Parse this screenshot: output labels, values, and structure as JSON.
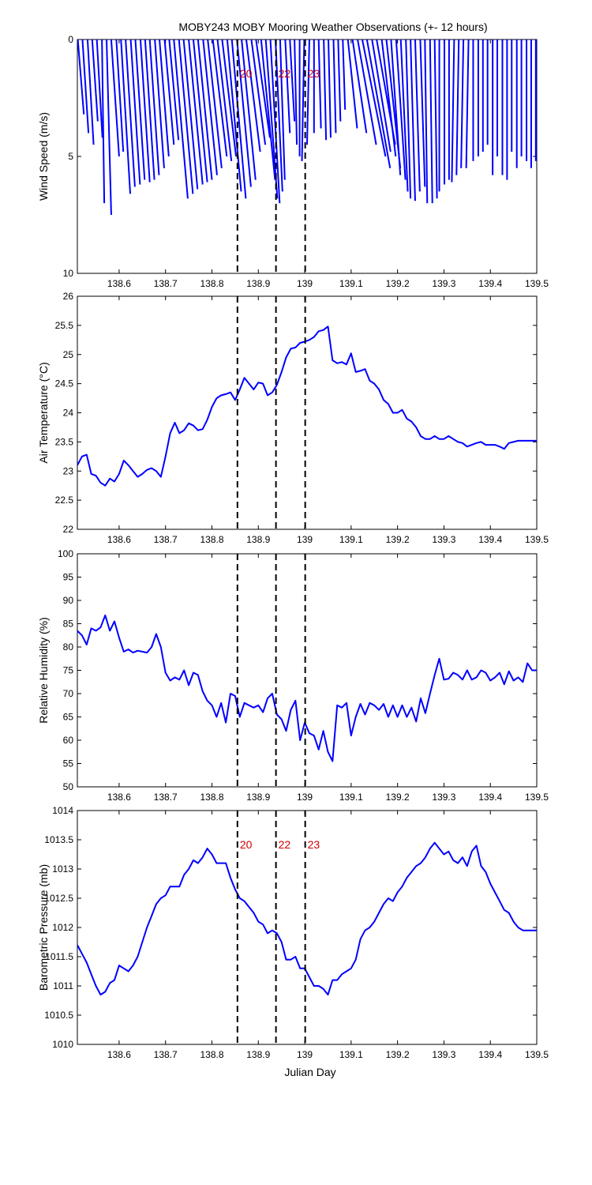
{
  "figure": {
    "title": "MOBY243 MOBY Mooring Weather Observations (+- 12 hours)",
    "xlabel": "Julian Day",
    "colors": {
      "data": "#0000ff",
      "marker_line": "#000000",
      "marker_label": "#cc0000",
      "axes": "#000000"
    },
    "markers": [
      {
        "x": 138.855,
        "label": "20"
      },
      {
        "x": 138.938,
        "label": "22"
      },
      {
        "x": 139.001,
        "label": "23"
      }
    ]
  },
  "chart_data": [
    {
      "id": "wind",
      "type": "line",
      "subtype": "wind-stick",
      "ylabel": "Wind Speed (m/s)",
      "xlim": [
        138.51,
        139.5
      ],
      "ylim": [
        0,
        10
      ],
      "y_reversed": true,
      "yticks": [
        0,
        5,
        10
      ],
      "xticks": [
        138.6,
        138.7,
        138.8,
        138.9,
        139,
        139.1,
        139.2,
        139.3,
        139.4,
        139.5
      ],
      "show_marker_labels": true,
      "x": [
        138.511,
        138.521,
        138.532,
        138.542,
        138.552,
        138.563,
        138.573,
        138.583,
        138.594,
        138.604,
        138.614,
        138.625,
        138.635,
        138.646,
        138.656,
        138.666,
        138.677,
        138.687,
        138.698,
        138.708,
        138.718,
        138.729,
        138.739,
        138.75,
        138.76,
        138.77,
        138.781,
        138.791,
        138.802,
        138.812,
        138.822,
        138.833,
        138.843,
        138.854,
        138.864,
        138.874,
        138.885,
        138.895,
        138.906,
        138.916,
        138.926,
        138.937,
        138.947,
        138.958,
        138.968,
        138.978,
        138.989,
        138.999,
        139.01,
        139.02,
        139.03,
        139.041,
        139.051,
        139.062,
        139.072,
        139.082,
        139.093,
        139.103,
        139.114,
        139.124,
        139.134,
        139.145,
        139.155,
        139.166,
        139.176,
        139.186,
        139.197,
        139.207,
        139.218,
        139.228,
        139.238,
        139.249,
        139.259,
        139.27,
        139.28,
        139.29,
        139.301,
        139.311,
        139.322,
        139.332,
        139.342,
        139.353,
        139.363,
        139.374,
        139.384,
        139.394,
        139.405,
        139.415,
        139.426,
        139.436,
        139.446,
        139.457,
        139.467,
        139.478,
        139.488,
        139.498
      ],
      "speed": [
        3.2,
        4.0,
        4.5,
        3.5,
        4.2,
        7.0,
        7.5,
        5.0,
        4.8,
        6.6,
        6.3,
        6.2,
        6.0,
        6.1,
        6.0,
        5.8,
        5.5,
        5.0,
        4.5,
        4.3,
        6.8,
        6.6,
        6.4,
        6.2,
        6.1,
        6.0,
        5.8,
        5.5,
        5.0,
        5.2,
        5.0,
        6.5,
        6.8,
        6.3,
        6.0,
        4.8,
        4.5,
        4.2,
        6.0,
        6.8,
        7.0,
        6.5,
        6.0,
        4.0,
        3.5,
        4.5,
        5.0,
        5.2,
        4.5,
        4.0,
        3.8,
        4.3,
        4.2,
        4.0,
        3.5,
        3.0,
        3.8,
        4.0,
        4.5,
        5.0,
        5.5,
        4.8,
        4.5,
        5.0,
        5.5,
        5.8,
        6.0,
        6.5,
        6.8,
        6.9,
        6.5,
        6.3,
        7.0,
        7.0,
        6.8,
        6.5,
        6.2,
        6.0,
        6.1,
        5.8,
        5.5,
        5.5,
        5.2,
        5.0,
        4.8,
        4.5,
        5.8,
        5.0,
        5.8,
        6.0,
        4.8,
        5.5,
        5.0,
        5.2,
        5.5,
        5.2
      ],
      "direction_dx": [
        0.013,
        0.013,
        0.013,
        0.012,
        0.012,
        0.005,
        0.01,
        0.017,
        0.015,
        0.02,
        0.02,
        0.02,
        0.02,
        0.02,
        0.02,
        0.02,
        0.02,
        0.02,
        0.02,
        0.02,
        0.03,
        0.03,
        0.03,
        0.03,
        0.03,
        0.03,
        0.03,
        0.03,
        0.03,
        0.03,
        0.03,
        0.03,
        0.03,
        0.03,
        0.03,
        0.03,
        0.03,
        0.03,
        0.03,
        0.025,
        0.02,
        0.015,
        0.01,
        0.01,
        0.01,
        0.005,
        0.0,
        -0.005,
        -0.005,
        0.0,
        0.005,
        0.005,
        0.005,
        0.005,
        0.005,
        0.005,
        0.02,
        0.03,
        0.04,
        0.05,
        0.05,
        0.04,
        0.04,
        0.03,
        0.03,
        0.02,
        0.02,
        0.015,
        0.01,
        0.01,
        0.01,
        0.01,
        0.005,
        0.005,
        0.005,
        0.0,
        0.0,
        0.0,
        -0.005,
        -0.005,
        -0.005,
        -0.005,
        0.0,
        0.0,
        0.0,
        0.0,
        0.0,
        0.0,
        0.0,
        0.0,
        0.0,
        0.0,
        0.0,
        0.0,
        0.0,
        0.0
      ]
    },
    {
      "id": "air-temp",
      "type": "line",
      "ylabel": "Air Temperature (°C)",
      "xlim": [
        138.51,
        139.5
      ],
      "ylim": [
        22,
        26
      ],
      "yticks": [
        22,
        22.5,
        23,
        23.5,
        24,
        24.5,
        25,
        25.5,
        26
      ],
      "xticks": [
        138.6,
        138.7,
        138.8,
        138.9,
        139,
        139.1,
        139.2,
        139.3,
        139.4,
        139.5
      ],
      "show_marker_labels": false,
      "x": [
        138.51,
        138.52,
        138.53,
        138.54,
        138.55,
        138.56,
        138.57,
        138.58,
        138.59,
        138.6,
        138.61,
        138.62,
        138.63,
        138.64,
        138.65,
        138.66,
        138.67,
        138.68,
        138.69,
        138.7,
        138.71,
        138.72,
        138.73,
        138.74,
        138.75,
        138.76,
        138.77,
        138.78,
        138.79,
        138.8,
        138.81,
        138.82,
        138.83,
        138.84,
        138.85,
        138.86,
        138.87,
        138.88,
        138.89,
        138.9,
        138.91,
        138.92,
        138.93,
        138.94,
        138.95,
        138.96,
        138.97,
        138.98,
        138.99,
        139.0,
        139.01,
        139.02,
        139.03,
        139.04,
        139.05,
        139.06,
        139.07,
        139.08,
        139.09,
        139.1,
        139.11,
        139.12,
        139.13,
        139.14,
        139.15,
        139.16,
        139.17,
        139.18,
        139.19,
        139.2,
        139.21,
        139.22,
        139.23,
        139.24,
        139.25,
        139.26,
        139.27,
        139.28,
        139.29,
        139.3,
        139.31,
        139.32,
        139.33,
        139.34,
        139.35,
        139.36,
        139.37,
        139.38,
        139.39,
        139.4,
        139.41,
        139.42,
        139.43,
        139.44,
        139.45,
        139.46,
        139.47,
        139.48,
        139.49,
        139.5
      ],
      "y": [
        23.1,
        23.25,
        23.28,
        22.95,
        22.92,
        22.8,
        22.75,
        22.87,
        22.82,
        22.95,
        23.18,
        23.1,
        23.0,
        22.9,
        22.95,
        23.02,
        23.05,
        23.0,
        22.9,
        23.25,
        23.65,
        23.83,
        23.65,
        23.7,
        23.82,
        23.78,
        23.7,
        23.72,
        23.88,
        24.1,
        24.25,
        24.3,
        24.32,
        24.35,
        24.22,
        24.4,
        24.6,
        24.5,
        24.4,
        24.52,
        24.5,
        24.3,
        24.35,
        24.48,
        24.7,
        24.95,
        25.1,
        25.12,
        25.2,
        25.22,
        25.25,
        25.3,
        25.4,
        25.42,
        25.48,
        24.9,
        24.85,
        24.87,
        24.83,
        25.02,
        24.7,
        24.72,
        24.75,
        24.55,
        24.5,
        24.4,
        24.22,
        24.15,
        24.0,
        24.0,
        24.05,
        23.9,
        23.85,
        23.75,
        23.6,
        23.55,
        23.55,
        23.6,
        23.55,
        23.55,
        23.6,
        23.55,
        23.5,
        23.48,
        23.42,
        23.45,
        23.48,
        23.5,
        23.45,
        23.45,
        23.45,
        23.42,
        23.38,
        23.48,
        23.5,
        23.52,
        23.52,
        23.52,
        23.52,
        23.52
      ]
    },
    {
      "id": "humidity",
      "type": "line",
      "ylabel": "Relative Humidity (%)",
      "xlim": [
        138.51,
        139.5
      ],
      "ylim": [
        50,
        100
      ],
      "yticks": [
        50,
        55,
        60,
        65,
        70,
        75,
        80,
        85,
        90,
        95,
        100
      ],
      "xticks": [
        138.6,
        138.7,
        138.8,
        138.9,
        139,
        139.1,
        139.2,
        139.3,
        139.4,
        139.5
      ],
      "show_marker_labels": false,
      "x": [
        138.51,
        138.52,
        138.53,
        138.54,
        138.55,
        138.56,
        138.57,
        138.58,
        138.59,
        138.6,
        138.61,
        138.62,
        138.63,
        138.64,
        138.65,
        138.66,
        138.67,
        138.68,
        138.69,
        138.7,
        138.71,
        138.72,
        138.73,
        138.74,
        138.75,
        138.76,
        138.77,
        138.78,
        138.79,
        138.8,
        138.81,
        138.82,
        138.83,
        138.84,
        138.85,
        138.86,
        138.87,
        138.88,
        138.89,
        138.9,
        138.91,
        138.92,
        138.93,
        138.94,
        138.95,
        138.96,
        138.97,
        138.98,
        138.99,
        139.0,
        139.01,
        139.02,
        139.03,
        139.04,
        139.05,
        139.06,
        139.07,
        139.08,
        139.09,
        139.1,
        139.11,
        139.12,
        139.13,
        139.14,
        139.15,
        139.16,
        139.17,
        139.18,
        139.19,
        139.2,
        139.21,
        139.22,
        139.23,
        139.24,
        139.25,
        139.26,
        139.27,
        139.28,
        139.29,
        139.3,
        139.31,
        139.32,
        139.33,
        139.34,
        139.35,
        139.36,
        139.37,
        139.38,
        139.39,
        139.4,
        139.41,
        139.42,
        139.43,
        139.44,
        139.45,
        139.46,
        139.47,
        139.48,
        139.49,
        139.5
      ],
      "y": [
        83.5,
        82.5,
        80.5,
        84.0,
        83.5,
        84.2,
        86.8,
        83.5,
        85.5,
        82.0,
        79.0,
        79.5,
        78.8,
        79.2,
        79.0,
        78.8,
        80.0,
        82.8,
        80.0,
        74.5,
        72.8,
        73.5,
        73.0,
        75.0,
        71.8,
        74.5,
        74.0,
        70.5,
        68.5,
        67.5,
        65.0,
        68.0,
        63.8,
        70.0,
        69.5,
        65.0,
        68.0,
        67.5,
        67.0,
        67.5,
        66.0,
        69.0,
        70.0,
        65.5,
        64.5,
        62.0,
        66.5,
        68.5,
        60.0,
        63.8,
        61.5,
        61.0,
        58.0,
        62.0,
        57.5,
        55.5,
        67.5,
        67.0,
        68.0,
        61.0,
        65.0,
        67.8,
        65.5,
        68.0,
        67.5,
        66.5,
        67.8,
        65.0,
        67.5,
        65.0,
        67.5,
        65.0,
        67.0,
        64.0,
        69.0,
        65.8,
        70.0,
        74.0,
        77.5,
        73.0,
        73.2,
        74.5,
        74.0,
        73.0,
        75.0,
        73.0,
        73.5,
        75.0,
        74.5,
        72.8,
        73.5,
        74.5,
        72.0,
        74.8,
        72.8,
        73.5,
        72.5,
        76.5,
        75.0,
        75.0
      ]
    },
    {
      "id": "pressure",
      "type": "line",
      "ylabel": "Barometric Pressure (mb)",
      "xlim": [
        138.51,
        139.5
      ],
      "ylim": [
        1010,
        1014
      ],
      "yticks": [
        1010,
        1010.5,
        1011,
        1011.5,
        1012,
        1012.5,
        1013,
        1013.5,
        1014
      ],
      "xticks": [
        138.6,
        138.7,
        138.8,
        138.9,
        139,
        139.1,
        139.2,
        139.3,
        139.4,
        139.5
      ],
      "show_marker_labels": true,
      "x": [
        138.51,
        138.52,
        138.53,
        138.54,
        138.55,
        138.56,
        138.57,
        138.58,
        138.59,
        138.6,
        138.61,
        138.62,
        138.63,
        138.64,
        138.65,
        138.66,
        138.67,
        138.68,
        138.69,
        138.7,
        138.71,
        138.72,
        138.73,
        138.74,
        138.75,
        138.76,
        138.77,
        138.78,
        138.79,
        138.8,
        138.81,
        138.82,
        138.83,
        138.84,
        138.85,
        138.86,
        138.87,
        138.88,
        138.89,
        138.9,
        138.91,
        138.92,
        138.93,
        138.94,
        138.95,
        138.96,
        138.97,
        138.98,
        138.99,
        139.0,
        139.01,
        139.02,
        139.03,
        139.04,
        139.05,
        139.06,
        139.07,
        139.08,
        139.09,
        139.1,
        139.11,
        139.12,
        139.13,
        139.14,
        139.15,
        139.16,
        139.17,
        139.18,
        139.19,
        139.2,
        139.21,
        139.22,
        139.23,
        139.24,
        139.25,
        139.26,
        139.27,
        139.28,
        139.29,
        139.3,
        139.31,
        139.32,
        139.33,
        139.34,
        139.35,
        139.36,
        139.37,
        139.38,
        139.39,
        139.4,
        139.41,
        139.42,
        139.43,
        139.44,
        139.45,
        139.46,
        139.47,
        139.48,
        139.49,
        139.5
      ],
      "y": [
        1011.7,
        1011.55,
        1011.4,
        1011.2,
        1011.0,
        1010.85,
        1010.9,
        1011.05,
        1011.1,
        1011.35,
        1011.3,
        1011.25,
        1011.35,
        1011.5,
        1011.75,
        1012.0,
        1012.2,
        1012.4,
        1012.5,
        1012.55,
        1012.7,
        1012.7,
        1012.7,
        1012.9,
        1013.0,
        1013.15,
        1013.1,
        1013.2,
        1013.35,
        1013.25,
        1013.1,
        1013.1,
        1013.1,
        1012.85,
        1012.65,
        1012.5,
        1012.45,
        1012.35,
        1012.25,
        1012.1,
        1012.05,
        1011.9,
        1011.95,
        1011.9,
        1011.75,
        1011.45,
        1011.45,
        1011.5,
        1011.3,
        1011.3,
        1011.15,
        1011.0,
        1011.0,
        1010.95,
        1010.85,
        1011.1,
        1011.1,
        1011.2,
        1011.25,
        1011.3,
        1011.45,
        1011.8,
        1011.95,
        1012.0,
        1012.1,
        1012.25,
        1012.4,
        1012.5,
        1012.45,
        1012.6,
        1012.7,
        1012.85,
        1012.95,
        1013.05,
        1013.1,
        1013.2,
        1013.35,
        1013.45,
        1013.35,
        1013.25,
        1013.3,
        1013.15,
        1013.1,
        1013.2,
        1013.05,
        1013.3,
        1013.4,
        1013.05,
        1012.95,
        1012.75,
        1012.6,
        1012.45,
        1012.3,
        1012.25,
        1012.1,
        1012.0,
        1011.95,
        1011.95,
        1011.95,
        1011.95
      ]
    }
  ]
}
